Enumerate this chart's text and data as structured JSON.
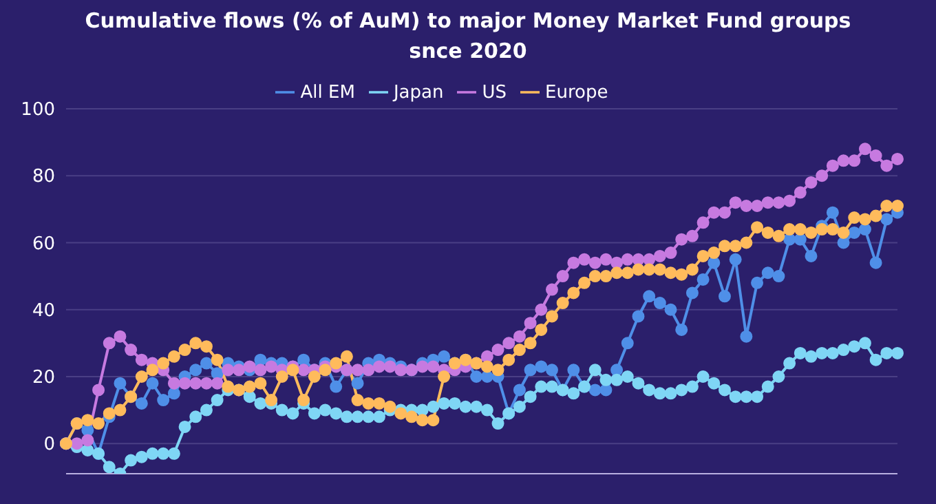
{
  "chart_data": {
    "type": "line",
    "title": "Cumulative flows (% of AuM) to major Money Market Fund groups snce 2020",
    "categories": [
      null,
      null,
      null,
      null,
      null,
      null,
      null,
      null,
      null,
      null,
      null,
      null,
      null,
      null,
      null,
      null,
      null,
      null,
      null,
      null,
      null,
      null,
      null,
      null,
      null,
      null,
      null,
      null,
      null,
      null,
      null,
      null,
      null,
      null,
      null,
      null,
      null,
      null,
      null,
      null,
      null,
      null,
      null,
      null,
      null,
      null,
      null,
      null,
      null,
      null,
      null,
      null,
      null,
      null,
      null,
      null,
      null,
      null,
      null,
      null,
      null,
      null,
      null,
      null,
      null,
      null,
      null,
      null,
      null,
      null,
      null,
      null,
      null,
      null,
      null,
      null,
      null,
      null
    ],
    "series": [
      {
        "name": "All EM",
        "color": "#4f8fe8",
        "values": [
          0,
          6,
          4,
          -3,
          8,
          18,
          14,
          12,
          18,
          13,
          15,
          20,
          22,
          24,
          21,
          24,
          23,
          22,
          25,
          24,
          24,
          23,
          25,
          22,
          24,
          17,
          22,
          18,
          24,
          25,
          24,
          23,
          22,
          24,
          25,
          26,
          24,
          25,
          20,
          20,
          20,
          9,
          16,
          22,
          23,
          22,
          16,
          22,
          17,
          16,
          16,
          22,
          30,
          38,
          44,
          42,
          40,
          34,
          45,
          49,
          54,
          44,
          55,
          32,
          48,
          51,
          50,
          61,
          61,
          56,
          65,
          69,
          60,
          63,
          64,
          54,
          67,
          69
        ]
      },
      {
        "name": "Japan",
        "color": "#7fd6f5",
        "values": [
          0,
          -1,
          -2,
          -3,
          -7,
          -9,
          -5,
          -4,
          -3,
          -3,
          -3,
          5,
          8,
          10,
          13,
          16,
          16,
          14,
          12,
          12,
          10,
          9,
          12,
          9,
          10,
          9,
          8,
          8,
          8,
          8,
          10,
          10,
          10,
          10,
          11,
          12,
          12,
          11,
          11,
          10,
          6,
          9,
          11,
          14,
          17,
          17,
          16,
          15,
          17,
          22,
          19,
          19,
          20,
          18,
          16,
          15,
          15,
          16,
          17,
          20,
          18,
          16,
          14,
          14,
          14,
          17,
          20,
          24,
          27,
          26,
          27,
          27,
          28,
          29,
          30,
          25,
          27,
          27
        ]
      },
      {
        "name": "US",
        "color": "#c77ae0",
        "values": [
          0,
          0,
          1,
          16,
          30,
          32,
          28,
          25,
          24,
          22,
          18,
          18,
          18,
          18,
          18,
          22,
          22,
          23,
          22,
          23,
          22,
          23,
          22,
          22,
          23,
          23,
          22,
          22,
          22,
          23,
          23,
          22,
          22,
          23,
          23,
          22,
          22,
          23,
          24,
          26,
          28,
          30,
          32,
          36,
          40,
          46,
          50,
          54,
          55,
          54,
          55,
          54,
          55,
          55,
          55,
          56,
          57,
          61,
          62,
          66,
          69,
          69,
          72,
          71,
          71,
          72,
          72,
          72.5,
          75,
          78,
          80,
          83,
          84.5,
          84.5,
          88,
          86,
          83,
          85
        ]
      },
      {
        "name": "Europe",
        "color": "#ffbb5c",
        "values": [
          0,
          6,
          7,
          6,
          9,
          10,
          14,
          20,
          22,
          24,
          26,
          28,
          30,
          29,
          25,
          17,
          16,
          17,
          18,
          13,
          20,
          22,
          13,
          20,
          22,
          24,
          26,
          13,
          12,
          12,
          11,
          9,
          8,
          7,
          7,
          20,
          24,
          25,
          24,
          23,
          22,
          25,
          28,
          30,
          34,
          38,
          42,
          45,
          48,
          50,
          50,
          51,
          51,
          52,
          52,
          52,
          51,
          50.5,
          52,
          56,
          57,
          59,
          59,
          60,
          64.6,
          63,
          62,
          64,
          64,
          63,
          64,
          64,
          63,
          67.5,
          67,
          68,
          71,
          71
        ]
      }
    ],
    "ylim": [
      -9,
      100
    ],
    "yticks": [
      0,
      20,
      40,
      60,
      80,
      100
    ],
    "grid": "y",
    "legend": "top",
    "marker": "circle",
    "line_style": "solid",
    "tick_labels": "y"
  }
}
